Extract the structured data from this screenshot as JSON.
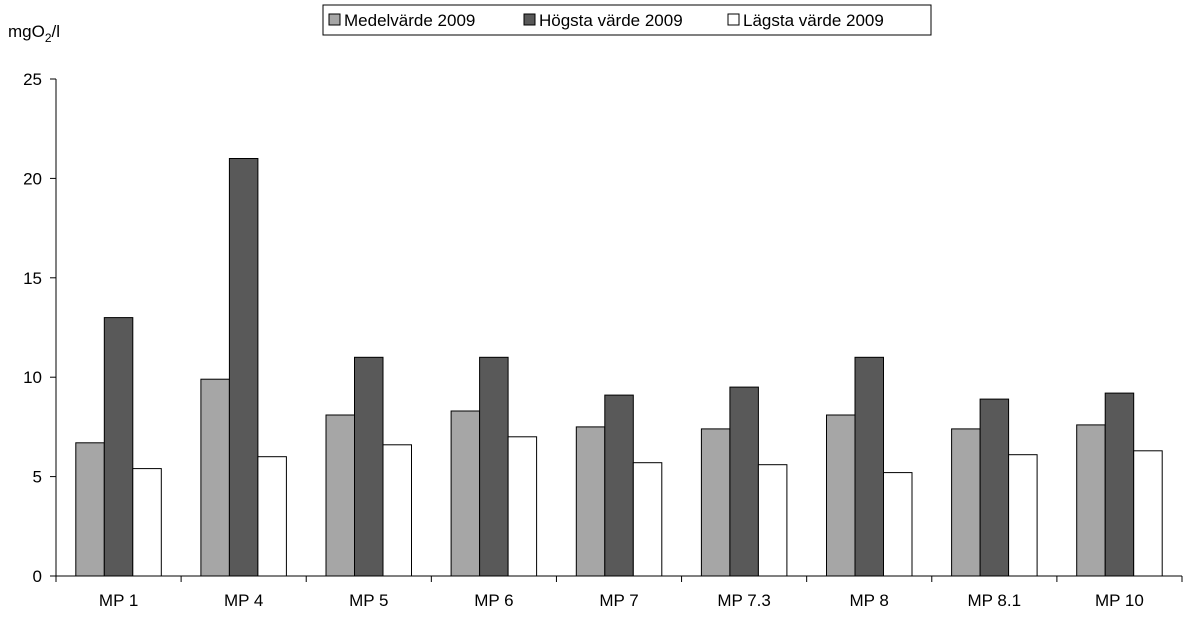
{
  "chart_data": {
    "type": "bar",
    "title": "",
    "xlabel": "",
    "ylabel_main": "mgO",
    "ylabel_sub": "2",
    "ylabel_tail": "/l",
    "ylim": [
      0,
      25
    ],
    "yticks": [
      0,
      5,
      10,
      15,
      20,
      25
    ],
    "grid": false,
    "legend_position": "top",
    "categories": [
      "MP 1",
      "MP 4",
      "MP 5",
      "MP 6",
      "MP 7",
      "MP 7.3",
      "MP 8",
      "MP 8.1",
      "MP 10"
    ],
    "series": [
      {
        "name": "Medelvärde 2009",
        "color": "#a6a6a6",
        "values": [
          6.7,
          9.9,
          8.1,
          8.3,
          7.5,
          7.4,
          8.1,
          7.4,
          7.6
        ]
      },
      {
        "name": "Högsta värde 2009",
        "color": "#595959",
        "values": [
          13,
          21,
          11,
          11,
          9.1,
          9.5,
          11,
          8.9,
          9.2
        ]
      },
      {
        "name": "Lägsta värde 2009",
        "color": "#ffffff",
        "values": [
          5.4,
          6.0,
          6.6,
          7.0,
          5.7,
          5.6,
          5.2,
          6.1,
          6.3
        ]
      }
    ]
  }
}
